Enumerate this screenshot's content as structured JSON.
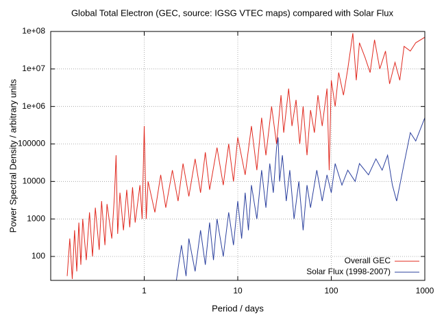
{
  "chart_data": {
    "type": "line",
    "title": "Global Total Electron (GEC, source: IGSG VTEC maps) compared with Solar Flux",
    "x_label": "Period / days",
    "y_label": "Power Spectral Density / arbitrary units",
    "log_x": true,
    "log_y": true,
    "grid": true,
    "legend": "bottom-right",
    "xlim": [
      0.1,
      1000
    ],
    "ylim": [
      23,
      100000000
    ],
    "xticks": [
      1,
      10,
      100,
      1000
    ],
    "yticks": [
      100,
      1000,
      10000,
      100000,
      {
        "value": 1000000,
        "label": "1e+06"
      },
      {
        "value": 10000000,
        "label": "1e+07"
      },
      {
        "value": 100000000,
        "label": "1e+08"
      }
    ],
    "series": [
      {
        "name": "Overall GEC",
        "color": "#e0281e",
        "x": [
          0.15,
          0.16,
          0.17,
          0.18,
          0.19,
          0.2,
          0.21,
          0.22,
          0.24,
          0.26,
          0.28,
          0.3,
          0.33,
          0.35,
          0.38,
          0.4,
          0.45,
          0.48,
          0.5,
          0.52,
          0.55,
          0.6,
          0.65,
          0.7,
          0.75,
          0.8,
          0.9,
          0.95,
          1.0,
          1.05,
          1.1,
          1.3,
          1.5,
          1.7,
          2,
          2.3,
          2.6,
          3,
          3.5,
          4,
          4.5,
          5,
          6,
          7,
          8,
          9,
          10,
          12,
          14,
          16,
          18,
          20,
          23,
          26,
          29,
          31,
          35,
          38,
          42,
          46,
          50,
          55,
          60,
          66,
          72,
          80,
          90,
          95,
          100,
          110,
          120,
          135,
          150,
          170,
          185,
          200,
          230,
          260,
          290,
          330,
          380,
          420,
          480,
          540,
          600,
          700,
          800,
          1000
        ],
        "values": [
          30,
          300,
          25,
          500,
          40,
          800,
          60,
          1000,
          80,
          1500,
          100,
          2000,
          150,
          3000,
          200,
          2500,
          300,
          4000,
          50000,
          400,
          5000,
          500,
          6000,
          600,
          7000,
          800,
          8000,
          1000,
          300000,
          1000,
          10000,
          1500,
          15000,
          2000,
          20000,
          3000,
          30000,
          4000,
          40000,
          5000,
          60000,
          6000,
          80000,
          8000,
          100000,
          10000,
          150000,
          15000,
          300000,
          20000,
          500000,
          50000,
          1000000,
          100000,
          2000000,
          200000,
          3000000,
          300000,
          1500000,
          100000,
          1000000,
          50000,
          800000,
          200000,
          2000000,
          300000,
          3000000,
          20000,
          5000000,
          1000000,
          8000000,
          2000000,
          10000000,
          90000000,
          5000000,
          50000000,
          20000000,
          8000000,
          60000000,
          10000000,
          30000000,
          4000000,
          15000000,
          5000000,
          40000000,
          30000000,
          50000000,
          70000000
        ]
      },
      {
        "name": "Solar Flux (1998-2007)",
        "color": "#2a3f9d",
        "x": [
          2.2,
          2.5,
          2.8,
          3,
          3.5,
          4,
          4.5,
          5,
          5.5,
          6,
          7,
          8,
          9,
          10,
          11,
          12,
          13,
          14,
          16,
          18,
          20,
          22,
          24,
          26,
          27,
          28,
          30,
          33,
          36,
          40,
          45,
          50,
          55,
          60,
          70,
          80,
          90,
          100,
          110,
          130,
          150,
          180,
          200,
          250,
          300,
          350,
          400,
          450,
          500,
          600,
          700,
          800,
          1000
        ],
        "values": [
          22,
          200,
          30,
          300,
          40,
          500,
          60,
          800,
          80,
          1000,
          100,
          1500,
          200,
          3000,
          300,
          5000,
          500,
          8000,
          1000,
          20000,
          2000,
          30000,
          5000,
          80000,
          150000,
          10000,
          50000,
          3000,
          20000,
          1000,
          10000,
          500,
          8000,
          2000,
          20000,
          3000,
          15000,
          5000,
          30000,
          8000,
          20000,
          10000,
          30000,
          15000,
          40000,
          20000,
          50000,
          8000,
          3000,
          30000,
          200000,
          120000,
          500000
        ]
      }
    ]
  }
}
